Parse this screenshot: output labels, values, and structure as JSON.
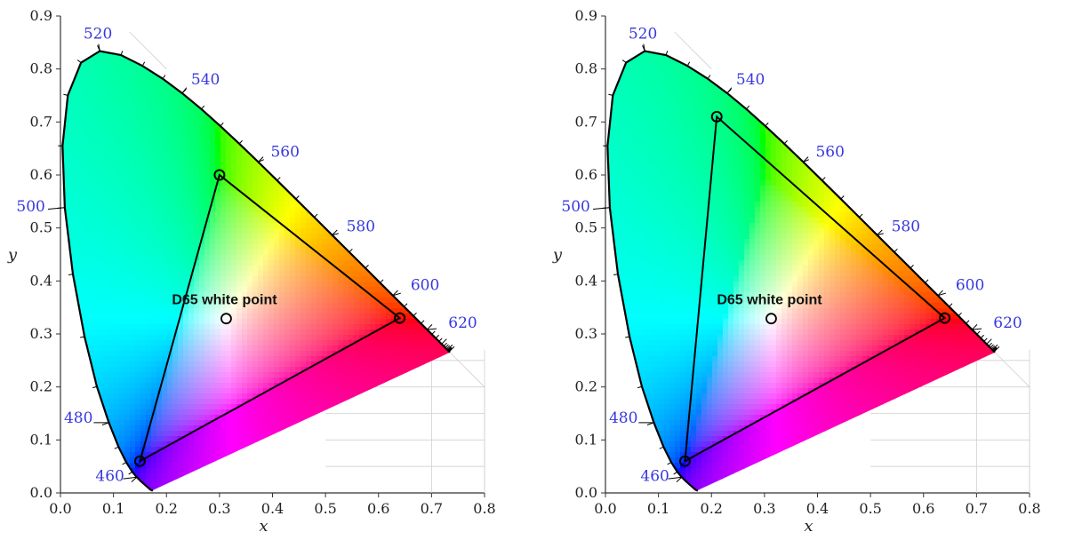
{
  "figure_title": "",
  "colors": {
    "locus_stroke": "#000000",
    "wavelength_label": "#3737e0",
    "grid": "#d0d0d0"
  },
  "chart_data": [
    {
      "type": "scatter",
      "title": "",
      "xlabel": "x",
      "ylabel": "y",
      "xlim": [
        0.0,
        0.8
      ],
      "ylim": [
        0.0,
        0.9
      ],
      "grid": true,
      "x_ticks": [
        "0.0",
        "0.1",
        "0.2",
        "0.3",
        "0.4",
        "0.5",
        "0.6",
        "0.7",
        "0.8"
      ],
      "y_ticks": [
        "0.0",
        "0.1",
        "0.2",
        "0.3",
        "0.4",
        "0.5",
        "0.6",
        "0.7",
        "0.8",
        "0.9"
      ],
      "wavelength_labels": [
        {
          "text": "460",
          "nm": 460
        },
        {
          "text": "480",
          "nm": 480
        },
        {
          "text": "500",
          "nm": 500
        },
        {
          "text": "520",
          "nm": 520
        },
        {
          "text": "540",
          "nm": 540
        },
        {
          "text": "560",
          "nm": 560
        },
        {
          "text": "580",
          "nm": 580
        },
        {
          "text": "600",
          "nm": 600
        },
        {
          "text": "620",
          "nm": 620
        }
      ],
      "gamut_primaries": [
        {
          "x": 0.64,
          "y": 0.33
        },
        {
          "x": 0.3,
          "y": 0.6
        },
        {
          "x": 0.15,
          "y": 0.06
        }
      ],
      "white_point": {
        "label": "D65 white point",
        "x": 0.3127,
        "y": 0.329
      }
    },
    {
      "type": "scatter",
      "title": "",
      "xlabel": "x",
      "ylabel": "y",
      "xlim": [
        0.0,
        0.8
      ],
      "ylim": [
        0.0,
        0.9
      ],
      "grid": true,
      "x_ticks": [
        "0.0",
        "0.1",
        "0.2",
        "0.3",
        "0.4",
        "0.5",
        "0.6",
        "0.7",
        "0.8"
      ],
      "y_ticks": [
        "0.0",
        "0.1",
        "0.2",
        "0.3",
        "0.4",
        "0.5",
        "0.6",
        "0.7",
        "0.8",
        "0.9"
      ],
      "wavelength_labels": [
        {
          "text": "460",
          "nm": 460
        },
        {
          "text": "480",
          "nm": 480
        },
        {
          "text": "500",
          "nm": 500
        },
        {
          "text": "520",
          "nm": 520
        },
        {
          "text": "540",
          "nm": 540
        },
        {
          "text": "560",
          "nm": 560
        },
        {
          "text": "580",
          "nm": 580
        },
        {
          "text": "600",
          "nm": 600
        },
        {
          "text": "620",
          "nm": 620
        }
      ],
      "gamut_primaries": [
        {
          "x": 0.64,
          "y": 0.33
        },
        {
          "x": 0.21,
          "y": 0.71
        },
        {
          "x": 0.15,
          "y": 0.06
        }
      ],
      "white_point": {
        "label": "D65 white point",
        "x": 0.3127,
        "y": 0.329
      }
    }
  ]
}
